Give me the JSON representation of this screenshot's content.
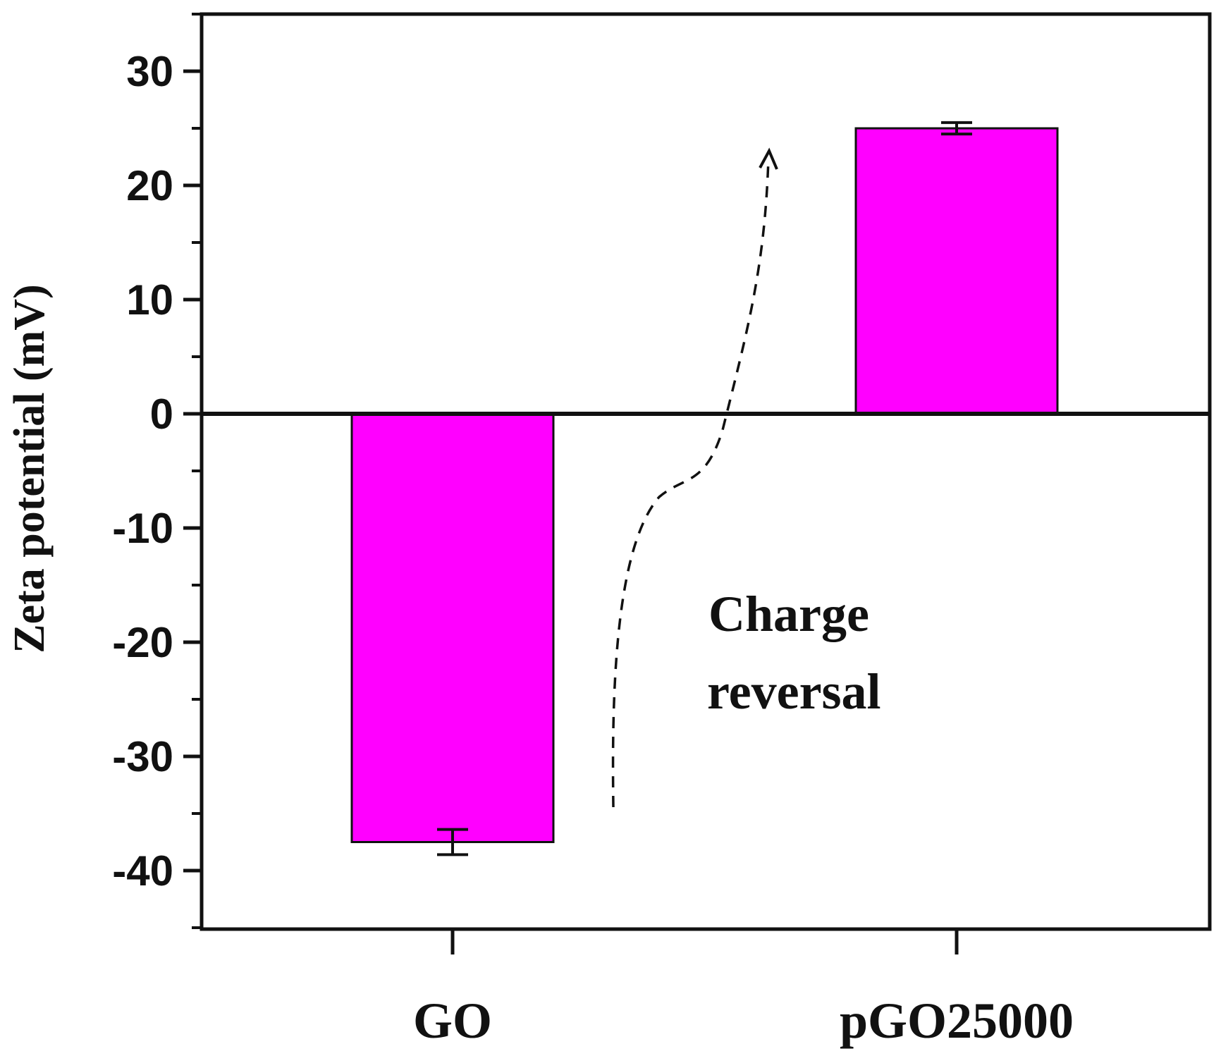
{
  "chart_data": {
    "type": "bar",
    "categories": [
      "GO",
      "pGO25000"
    ],
    "values": [
      -37.5,
      25
    ],
    "errors": [
      1.1,
      0.5
    ],
    "ylabel": "Zeta potential (mV)",
    "xlabel": "",
    "title": "",
    "ylim": [
      -45,
      35
    ],
    "yticks": [
      30,
      20,
      10,
      0,
      -10,
      -20,
      -30,
      -40
    ],
    "ytick_labels": [
      "30",
      "20",
      "10",
      "0",
      "-10",
      "-20",
      "-30",
      "-40"
    ],
    "zero_line": true,
    "grid": false,
    "bar_color": "#ff00ff",
    "annotation": {
      "line1": "Charge",
      "line2": "reversal",
      "arrow": "dashed curve from GO upward to pGO25000"
    }
  }
}
